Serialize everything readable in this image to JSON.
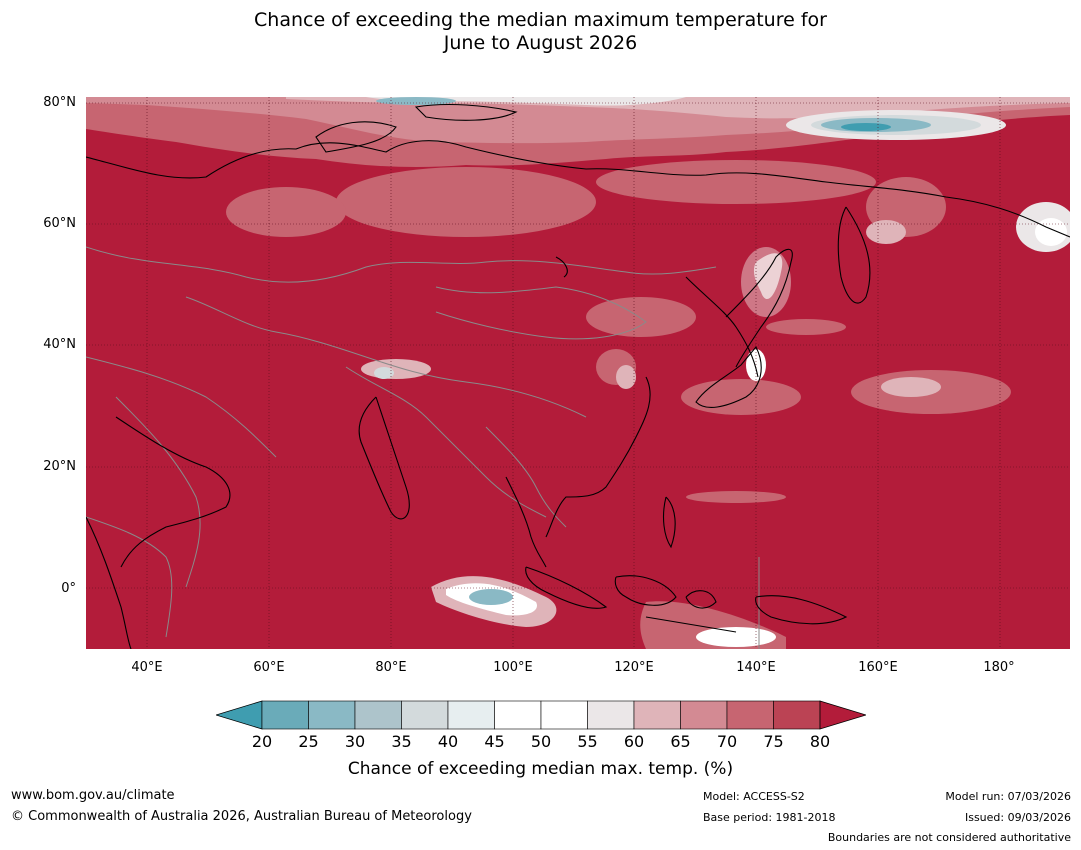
{
  "title_line1": "Chance of exceeding the median maximum temperature for",
  "title_line2": "June to August 2026",
  "map": {
    "lat_labels": [
      "80°N",
      "60°N",
      "40°N",
      "20°N",
      "0°"
    ],
    "lon_labels": [
      "40°E",
      "60°E",
      "80°E",
      "100°E",
      "120°E",
      "140°E",
      "160°E",
      "180°"
    ],
    "lat_range": [
      -10,
      81
    ],
    "lon_range": [
      30,
      191
    ],
    "dominant_color": "#b31c3a"
  },
  "colorbar": {
    "ticks": [
      "20",
      "25",
      "30",
      "35",
      "40",
      "45",
      "50",
      "55",
      "60",
      "65",
      "70",
      "75",
      "80"
    ],
    "colors": [
      "#3f9db0",
      "#6aabb9",
      "#8ab9c5",
      "#adc4cb",
      "#d3dadc",
      "#e7eef0",
      "#ffffff",
      "#ffffff",
      "#ebe7e8",
      "#dfb4b9",
      "#d38a93",
      "#c76571",
      "#bb4354",
      "#b31c3a"
    ],
    "label": "Chance of exceeding median max. temp. (%)"
  },
  "footer": {
    "website": "www.bom.gov.au/climate",
    "copyright": "© Commonwealth of Australia 2026, Australian Bureau of Meteorology",
    "model": "Model: ACCESS-S2",
    "base_period": "Base period: 1981-2018",
    "model_run": "Model run: 07/03/2026",
    "issued": "Issued: 09/03/2026",
    "boundaries_note": "Boundaries are not considered authoritative"
  }
}
